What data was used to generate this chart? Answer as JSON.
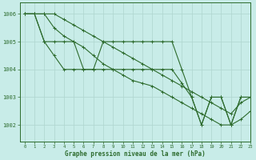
{
  "bg_color": "#c8ece8",
  "grid_color": "#aed4ce",
  "line_color": "#2d6b2d",
  "xlabel": "Graphe pression niveau de la mer (hPa)",
  "xlim": [
    -0.5,
    23
  ],
  "ylim": [
    1001.4,
    1006.4
  ],
  "yticks": [
    1002,
    1003,
    1004,
    1005,
    1006
  ],
  "xticks": [
    0,
    1,
    2,
    3,
    4,
    5,
    6,
    7,
    8,
    9,
    10,
    11,
    12,
    13,
    14,
    15,
    16,
    17,
    18,
    19,
    20,
    21,
    22,
    23
  ],
  "series": [
    [
      1006.0,
      1006.0,
      1005.0,
      1005.0,
      1005.0,
      1005.0,
      1004.0,
      1004.0,
      1005.0,
      1005.0,
      1005.0,
      1005.0,
      1005.0,
      1005.0,
      1005.0,
      1005.0,
      1004.0,
      1003.0,
      1002.0,
      1003.0,
      1003.0,
      1002.0,
      1003.0,
      1003.0
    ],
    [
      1006.0,
      1006.0,
      1005.0,
      1004.5,
      1004.0,
      1004.0,
      1004.0,
      1004.0,
      1004.0,
      1004.0,
      1004.0,
      1004.0,
      1004.0,
      1004.0,
      1004.0,
      1004.0,
      1003.5,
      1003.0,
      1002.0,
      1003.0,
      1003.0,
      1002.0,
      1003.0,
      1003.0
    ],
    [
      1006.0,
      1006.0,
      1006.0,
      1005.5,
      1005.2,
      1005.0,
      1004.8,
      1004.5,
      1004.2,
      1004.0,
      1003.8,
      1003.6,
      1003.5,
      1003.4,
      1003.2,
      1003.0,
      1002.8,
      1002.6,
      1002.4,
      1002.2,
      1002.0,
      1002.0,
      1002.2,
      1002.5
    ],
    [
      1006.0,
      1006.0,
      1006.0,
      1006.0,
      1005.8,
      1005.6,
      1005.4,
      1005.2,
      1005.0,
      1004.8,
      1004.6,
      1004.4,
      1004.2,
      1004.0,
      1003.8,
      1003.6,
      1003.4,
      1003.2,
      1003.0,
      1002.8,
      1002.6,
      1002.4,
      1002.8,
      1003.0
    ]
  ]
}
